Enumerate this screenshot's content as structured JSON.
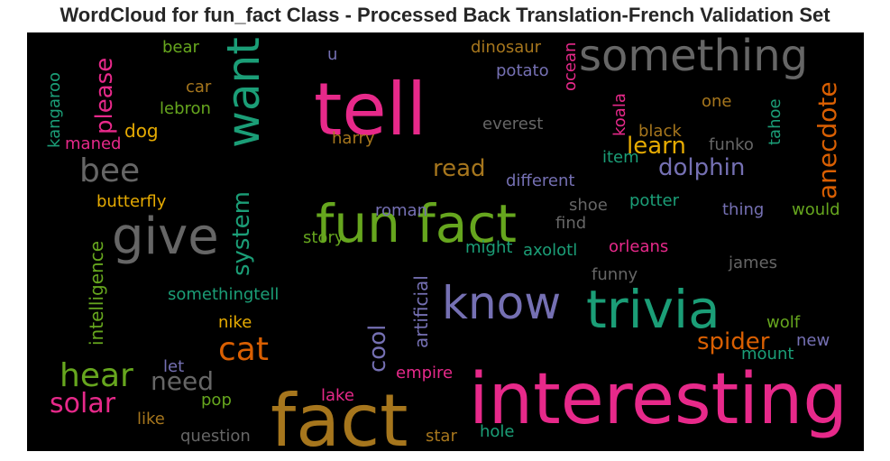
{
  "title": "WordCloud for fun_fact Class - Processed Back Translation-French Validation Set",
  "chart_data": {
    "type": "wordcloud",
    "background": "#000000",
    "colormap": "Dark2",
    "palette": {
      "green": "#1b9e77",
      "orange": "#d95f02",
      "purple": "#7570b3",
      "pink": "#e7298a",
      "lime": "#66a61e",
      "gold": "#e6ab02",
      "brown": "#a6761d",
      "gray": "#666666"
    },
    "words": [
      {
        "text": "interesting",
        "color": "pink"
      },
      {
        "text": "fact",
        "color": "brown"
      },
      {
        "text": "tell",
        "color": "pink"
      },
      {
        "text": "fun fact",
        "color": "lime"
      },
      {
        "text": "trivia",
        "color": "green"
      },
      {
        "text": "know",
        "color": "purple"
      },
      {
        "text": "give",
        "color": "gray"
      },
      {
        "text": "something",
        "color": "gray"
      },
      {
        "text": "want",
        "color": "green"
      },
      {
        "text": "hear",
        "color": "lime"
      },
      {
        "text": "cat",
        "color": "orange"
      },
      {
        "text": "bee",
        "color": "gray"
      },
      {
        "text": "solar",
        "color": "pink"
      },
      {
        "text": "anecdote",
        "color": "orange"
      },
      {
        "text": "need",
        "color": "gray"
      },
      {
        "text": "please",
        "color": "pink"
      },
      {
        "text": "dolphin",
        "color": "purple"
      },
      {
        "text": "read",
        "color": "brown"
      },
      {
        "text": "learn",
        "color": "gold"
      },
      {
        "text": "system",
        "color": "green"
      },
      {
        "text": "spider",
        "color": "orange"
      },
      {
        "text": "cool",
        "color": "purple"
      },
      {
        "text": "artificial",
        "color": "purple"
      },
      {
        "text": "intelligence",
        "color": "lime"
      },
      {
        "text": "kangaroo",
        "color": "green"
      },
      {
        "text": "dog",
        "color": "gold"
      },
      {
        "text": "maned",
        "color": "pink"
      },
      {
        "text": "butterfly",
        "color": "gold"
      },
      {
        "text": "lebron",
        "color": "lime"
      },
      {
        "text": "car",
        "color": "brown"
      },
      {
        "text": "bear",
        "color": "lime"
      },
      {
        "text": "u",
        "color": "purple"
      },
      {
        "text": "dinosaur",
        "color": "brown"
      },
      {
        "text": "potato",
        "color": "purple"
      },
      {
        "text": "ocean",
        "color": "pink"
      },
      {
        "text": "koala",
        "color": "pink"
      },
      {
        "text": "one",
        "color": "brown"
      },
      {
        "text": "tahoe",
        "color": "green"
      },
      {
        "text": "everest",
        "color": "gray"
      },
      {
        "text": "black",
        "color": "brown"
      },
      {
        "text": "harry",
        "color": "brown"
      },
      {
        "text": "funko",
        "color": "gray"
      },
      {
        "text": "item",
        "color": "green"
      },
      {
        "text": "different",
        "color": "purple"
      },
      {
        "text": "roman",
        "color": "purple"
      },
      {
        "text": "shoe",
        "color": "gray"
      },
      {
        "text": "potter",
        "color": "green"
      },
      {
        "text": "thing",
        "color": "purple"
      },
      {
        "text": "would",
        "color": "lime"
      },
      {
        "text": "find",
        "color": "gray"
      },
      {
        "text": "story",
        "color": "lime"
      },
      {
        "text": "might",
        "color": "green"
      },
      {
        "text": "axolotl",
        "color": "green"
      },
      {
        "text": "orleans",
        "color": "pink"
      },
      {
        "text": "james",
        "color": "gray"
      },
      {
        "text": "funny",
        "color": "gray"
      },
      {
        "text": "somethingtell",
        "color": "green"
      },
      {
        "text": "nike",
        "color": "gold"
      },
      {
        "text": "wolf",
        "color": "lime"
      },
      {
        "text": "new",
        "color": "purple"
      },
      {
        "text": "mount",
        "color": "green"
      },
      {
        "text": "let",
        "color": "purple"
      },
      {
        "text": "empire",
        "color": "pink"
      },
      {
        "text": "lake",
        "color": "pink"
      },
      {
        "text": "pop",
        "color": "lime"
      },
      {
        "text": "like",
        "color": "brown"
      },
      {
        "text": "question",
        "color": "gray"
      },
      {
        "text": "star",
        "color": "brown"
      },
      {
        "text": "hole",
        "color": "green"
      }
    ]
  }
}
